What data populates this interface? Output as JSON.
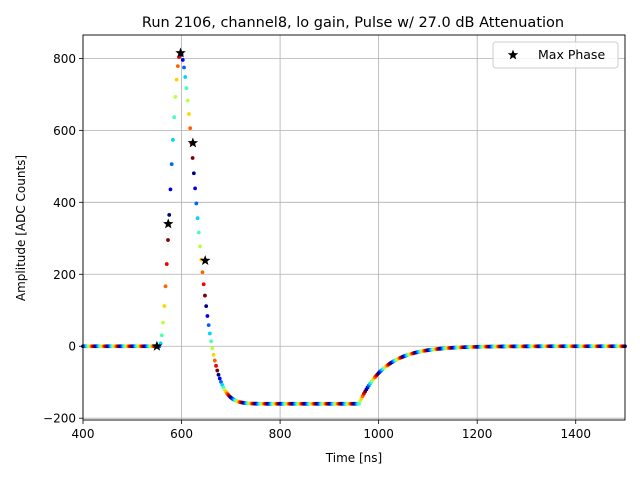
{
  "chart_data": {
    "type": "scatter",
    "title": "Run 2106, channel8, lo gain, Pulse w/ 27.0 dB Attenuation",
    "xlabel": "Time [ns]",
    "ylabel": "Amplitude [ADC Counts]",
    "xlim": [
      400,
      1500
    ],
    "ylim": [
      -205,
      865
    ],
    "xticks": [
      400,
      600,
      800,
      1000,
      1200,
      1400
    ],
    "yticks": [
      -200,
      0,
      200,
      400,
      600,
      800
    ],
    "grid": true,
    "legend": {
      "placement": "top-right",
      "entries": [
        "Max Phase"
      ]
    },
    "pulse_series": {
      "marker": "dots",
      "colormap": "jet",
      "x_start": 400,
      "x_end": 1500,
      "x_step": 2.5,
      "baseline": 0,
      "rise_start": 555,
      "peak_x": 598,
      "peak_value": 815,
      "undershoot": -160,
      "recovery_start": 960,
      "recovery_end": 1180
    },
    "max_phase_points": {
      "name": "Max Phase",
      "marker": "star",
      "color": "#000000",
      "x": [
        550,
        573,
        598,
        623,
        648
      ],
      "y": [
        0,
        340,
        815,
        565,
        238
      ]
    }
  }
}
